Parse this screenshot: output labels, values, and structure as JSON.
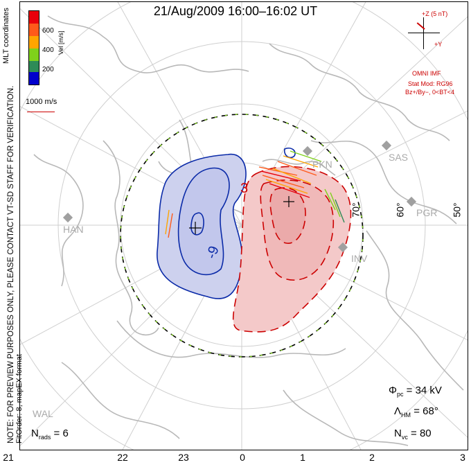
{
  "title": "21/Aug/2009 16:00–16:02 UT",
  "side_note": {
    "line1": "NOTE: FOR PREVIEW PURPOSES ONLY, PLEASE CONTACT VT-SD STAFF FOR VERIFICATION.",
    "line2": "FitOrder: 8, mapEX format"
  },
  "colorbar": {
    "label": "Vel [m/s]",
    "coords_label": "MLT coordinates",
    "ticks": [
      "600",
      "400",
      "200"
    ],
    "colors": [
      "#e8000b",
      "#ff5a1a",
      "#ffa500",
      "#7fd11b",
      "#2e8b57",
      "#0000cc"
    ]
  },
  "velocity_scale": "1000 m/s",
  "imf": {
    "z_label": "+Z (5 nT)",
    "y_label": "+Y",
    "source": "OMNI IMF",
    "model_line1": "Stat Mod: RG96",
    "model_line2": "Bz+/By−, 0<BT<4"
  },
  "stations": [
    "PKN",
    "SAS",
    "PGR",
    "HAN",
    "INV",
    "WAL"
  ],
  "latitude_labels": [
    "60°",
    "50°",
    "70°"
  ],
  "contour_labels": [
    "3",
    "-9"
  ],
  "stats": {
    "phi_pc": "= 34 kV",
    "lambda_hm": "= 68°",
    "n_vc": "= 80",
    "n_rads": "= 6"
  },
  "mlt_ticks": [
    "21",
    "22",
    "23",
    "0",
    "1",
    "2",
    "3"
  ],
  "colors": {
    "positive_contour": "#cc0000",
    "negative_contour": "#0a2aa8",
    "positive_fill": "#f4c9c9",
    "negative_fill": "#cdd1ee",
    "coastline": "#b8b8b8",
    "grid": "#c8c8c8"
  }
}
